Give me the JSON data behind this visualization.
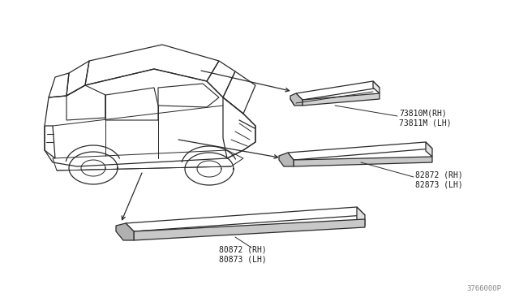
{
  "bg_color": "#ffffff",
  "line_color": "#2a2a2a",
  "text_color": "#1a1a1a",
  "diagram_id": "3766000P",
  "labels": {
    "top_molding_line1": "73810M(RH)",
    "top_molding_line2": "73811M (LH)",
    "rear_molding_line1": "82872 (RH)",
    "rear_molding_line2": "82873 (LH)",
    "front_molding_line1": "80872 (RH)",
    "front_molding_line2": "80873 (LH)"
  },
  "figsize": [
    6.4,
    3.72
  ],
  "dpi": 100
}
